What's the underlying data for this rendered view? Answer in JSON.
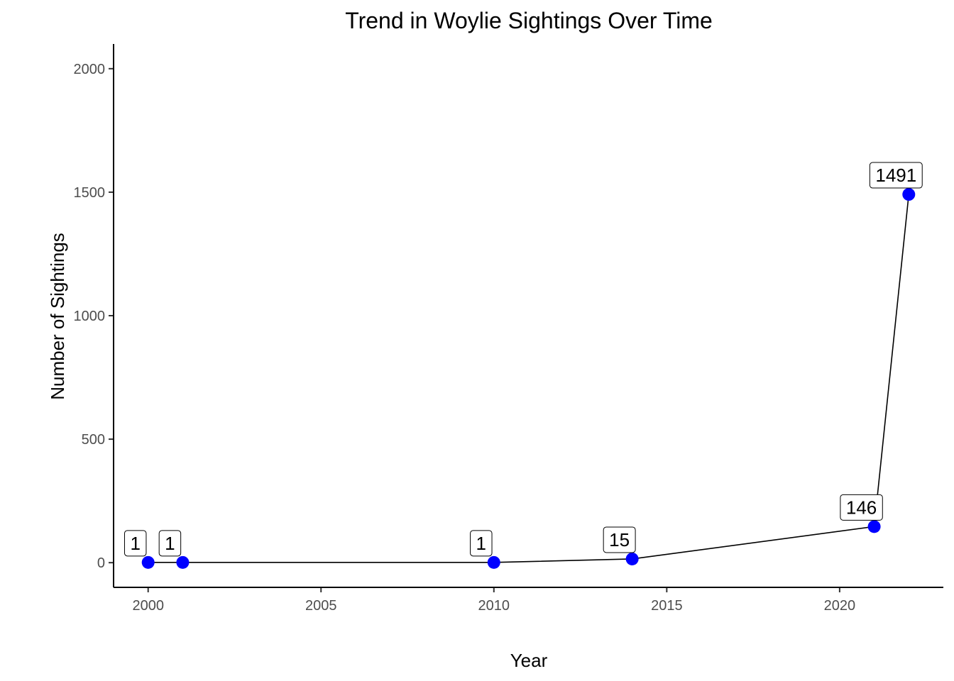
{
  "chart_data": {
    "type": "line",
    "title": "Trend in Woylie Sightings Over Time",
    "xlabel": "Year",
    "ylabel": "Number of Sightings",
    "x": [
      2000,
      2001,
      2010,
      2014,
      2021,
      2022
    ],
    "values": [
      1,
      1,
      1,
      15,
      146,
      1491
    ],
    "data_labels": [
      "1",
      "1",
      "1",
      "15",
      "146",
      "1491"
    ],
    "xlim": [
      1999,
      2023
    ],
    "ylim": [
      -100,
      2100
    ],
    "x_ticks": [
      2000,
      2005,
      2010,
      2015,
      2020
    ],
    "x_tick_labels": [
      "2000",
      "2005",
      "2010",
      "2015",
      "2020"
    ],
    "y_ticks": [
      0,
      500,
      1000,
      1500,
      2000
    ],
    "y_tick_labels": [
      "0",
      "500",
      "1000",
      "1500",
      "2000"
    ],
    "grid": false,
    "legend": "none",
    "point_color": "#0000ff",
    "line_color": "#000000"
  }
}
